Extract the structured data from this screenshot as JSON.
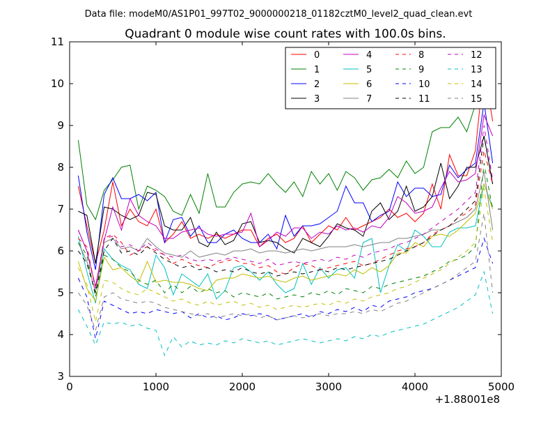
{
  "suptitle": "Data file: modeM0/AS1P01_997T02_9000000218_01182cztM0_level2_quad_clean.evt",
  "chart_data": {
    "type": "line",
    "title": "Quadrant 0 module wise count rates with 100.0s bins.",
    "xlabel": "",
    "ylabel": "",
    "x_offset_label": "+1.88001e8",
    "xlim": [
      0,
      5000
    ],
    "ylim": [
      3,
      11
    ],
    "xticks": [
      0,
      1000,
      2000,
      3000,
      4000,
      5000
    ],
    "yticks": [
      3,
      4,
      5,
      6,
      7,
      8,
      9,
      10,
      11
    ],
    "grid": false,
    "legend": {
      "placement": "top-right",
      "ncol": 4
    },
    "x": [
      100,
      200,
      300,
      400,
      500,
      600,
      700,
      800,
      900,
      1000,
      1100,
      1200,
      1300,
      1400,
      1500,
      1600,
      1700,
      1800,
      1900,
      2000,
      2100,
      2200,
      2300,
      2400,
      2500,
      2600,
      2700,
      2800,
      2900,
      3000,
      3100,
      3200,
      3300,
      3400,
      3500,
      3600,
      3700,
      3800,
      3900,
      4000,
      4100,
      4200,
      4300,
      4400,
      4500,
      4600,
      4700,
      4800,
      4900
    ],
    "series": [
      {
        "name": "0",
        "color": "#ff0000",
        "dash": "solid",
        "values": [
          7.55,
          6.6,
          5.7,
          6.5,
          7.65,
          6.6,
          7.0,
          6.7,
          6.6,
          7.0,
          6.2,
          6.4,
          6.7,
          6.3,
          6.4,
          6.3,
          6.4,
          6.3,
          6.4,
          6.5,
          6.5,
          6.1,
          6.3,
          6.4,
          6.2,
          6.3,
          6.6,
          6.2,
          6.4,
          6.6,
          6.5,
          6.8,
          6.5,
          6.6,
          6.7,
          6.8,
          7.0,
          6.8,
          6.9,
          6.7,
          6.9,
          7.6,
          7.0,
          8.3,
          7.8,
          7.8,
          8.4,
          10.4,
          9.1
        ]
      },
      {
        "name": "1",
        "color": "#008000",
        "dash": "solid",
        "values": [
          8.65,
          7.1,
          6.75,
          7.45,
          7.7,
          8.0,
          8.05,
          7.0,
          7.55,
          7.45,
          7.3,
          6.95,
          6.85,
          7.35,
          6.9,
          7.85,
          7.05,
          7.05,
          7.4,
          7.6,
          7.65,
          7.6,
          7.85,
          7.6,
          7.4,
          7.65,
          7.3,
          7.9,
          7.6,
          7.85,
          7.45,
          7.9,
          7.75,
          7.45,
          7.7,
          7.75,
          7.95,
          7.75,
          8.15,
          7.85,
          8.0,
          8.85,
          8.95,
          8.95,
          9.2,
          8.85,
          9.5,
          10.6,
          9.7
        ]
      },
      {
        "name": "2",
        "color": "#0000ff",
        "dash": "solid",
        "values": [
          7.8,
          6.45,
          5.55,
          7.35,
          7.75,
          7.25,
          7.25,
          7.35,
          7.2,
          7.4,
          6.2,
          6.75,
          6.8,
          6.35,
          6.6,
          6.2,
          6.2,
          6.4,
          6.5,
          6.3,
          6.2,
          6.2,
          6.4,
          6.05,
          6.85,
          6.35,
          6.6,
          6.6,
          6.65,
          6.8,
          6.95,
          7.55,
          7.15,
          7.15,
          6.7,
          6.85,
          6.95,
          7.65,
          7.3,
          7.5,
          7.5,
          7.3,
          7.35,
          8.05,
          7.75,
          7.95,
          8.1,
          9.55,
          8.1
        ]
      },
      {
        "name": "3",
        "color": "#000000",
        "dash": "solid",
        "values": [
          6.95,
          6.85,
          5.7,
          7.05,
          7.0,
          6.85,
          6.75,
          6.85,
          7.4,
          7.35,
          6.6,
          6.5,
          6.5,
          6.8,
          6.2,
          6.1,
          6.45,
          6.15,
          6.25,
          6.65,
          6.7,
          6.2,
          6.25,
          6.2,
          6.05,
          5.95,
          6.3,
          6.2,
          6.1,
          6.35,
          6.65,
          6.55,
          6.5,
          6.35,
          6.95,
          7.15,
          6.75,
          6.95,
          7.55,
          6.95,
          7.05,
          7.3,
          8.1,
          7.25,
          7.55,
          8.0,
          8.0,
          8.75,
          7.6
        ]
      },
      {
        "name": "4",
        "color": "#bf00bf",
        "dash": "solid",
        "values": [
          6.5,
          6.0,
          5.15,
          6.25,
          7.05,
          6.5,
          7.25,
          6.85,
          6.7,
          6.6,
          6.3,
          6.3,
          6.45,
          6.5,
          6.55,
          6.4,
          6.35,
          6.4,
          6.4,
          6.45,
          6.9,
          6.1,
          6.25,
          6.45,
          6.35,
          6.55,
          6.55,
          6.3,
          6.45,
          6.4,
          6.6,
          6.5,
          6.55,
          6.45,
          6.6,
          6.55,
          6.8,
          7.3,
          7.15,
          6.9,
          6.95,
          7.05,
          7.5,
          7.9,
          7.65,
          7.7,
          7.85,
          9.25,
          8.75
        ]
      },
      {
        "name": "5",
        "color": "#00bfbf",
        "dash": "solid",
        "values": [
          6.35,
          5.5,
          4.75,
          6.05,
          5.8,
          5.65,
          5.55,
          5.2,
          5.1,
          5.9,
          5.6,
          4.95,
          5.45,
          5.3,
          5.15,
          5.45,
          4.85,
          5.05,
          5.6,
          5.65,
          5.5,
          5.3,
          5.5,
          5.2,
          5.0,
          5.1,
          5.7,
          5.2,
          5.6,
          5.35,
          5.55,
          5.6,
          5.35,
          6.2,
          6.3,
          5.0,
          5.65,
          6.15,
          6.0,
          6.5,
          6.35,
          6.1,
          6.1,
          6.45,
          6.55,
          6.55,
          6.6,
          7.6,
          7.05
        ]
      },
      {
        "name": "6",
        "color": "#bfbf00",
        "dash": "solid",
        "values": [
          5.75,
          5.1,
          4.8,
          5.85,
          5.55,
          5.6,
          5.4,
          5.25,
          5.75,
          5.25,
          5.3,
          5.25,
          5.25,
          5.2,
          5.1,
          5.05,
          5.3,
          5.35,
          5.35,
          5.45,
          5.4,
          5.35,
          5.4,
          5.3,
          5.25,
          5.35,
          5.4,
          5.3,
          5.35,
          5.4,
          5.45,
          5.4,
          5.55,
          5.45,
          5.6,
          5.5,
          5.65,
          5.95,
          5.95,
          6.2,
          6.1,
          6.35,
          6.4,
          6.35,
          6.5,
          6.7,
          6.9,
          7.6,
          7.0
        ]
      },
      {
        "name": "7",
        "color": "#808080",
        "dash": "solid",
        "values": [
          6.2,
          5.75,
          5.0,
          6.2,
          6.3,
          6.05,
          6.1,
          6.0,
          6.3,
          6.1,
          5.95,
          5.9,
          5.85,
          6.0,
          5.85,
          5.9,
          5.95,
          5.9,
          6.0,
          6.0,
          6.05,
          5.95,
          6.0,
          6.0,
          5.95,
          6.0,
          6.05,
          6.0,
          6.05,
          6.1,
          6.1,
          6.1,
          6.15,
          6.1,
          6.15,
          6.2,
          6.2,
          6.3,
          6.3,
          6.35,
          6.4,
          6.5,
          6.5,
          6.6,
          6.7,
          6.8,
          7.0,
          7.9,
          6.5
        ]
      },
      {
        "name": "8",
        "color": "#ff0000",
        "dash": "dashed",
        "values": [
          6.3,
          6.1,
          5.1,
          6.3,
          6.4,
          6.2,
          5.9,
          6.0,
          6.1,
          6.0,
          5.9,
          5.7,
          5.8,
          5.7,
          5.65,
          5.6,
          5.7,
          5.75,
          5.8,
          5.7,
          5.7,
          5.6,
          5.65,
          5.5,
          5.45,
          5.6,
          5.7,
          5.65,
          5.55,
          5.6,
          5.65,
          5.7,
          5.75,
          5.65,
          5.7,
          5.8,
          5.9,
          6.0,
          6.05,
          6.1,
          6.2,
          6.4,
          6.5,
          6.6,
          6.8,
          6.9,
          7.1,
          8.4,
          7.6
        ]
      },
      {
        "name": "9",
        "color": "#008000",
        "dash": "dashed",
        "values": [
          6.2,
          5.9,
          4.9,
          5.9,
          5.8,
          5.6,
          5.5,
          5.3,
          5.2,
          5.3,
          5.0,
          5.2,
          5.0,
          5.15,
          5.0,
          5.1,
          5.0,
          5.05,
          4.9,
          5.0,
          4.95,
          4.9,
          5.0,
          4.85,
          4.9,
          4.95,
          4.9,
          5.0,
          4.95,
          5.05,
          4.95,
          5.1,
          5.05,
          5.0,
          5.15,
          5.1,
          5.2,
          5.25,
          5.3,
          5.35,
          5.4,
          5.5,
          5.6,
          5.75,
          5.8,
          5.9,
          6.1,
          8.1,
          7.0
        ]
      },
      {
        "name": "10",
        "color": "#0000ff",
        "dash": "dashed",
        "values": [
          5.35,
          4.9,
          3.9,
          4.8,
          4.7,
          4.6,
          4.5,
          4.55,
          4.5,
          4.6,
          4.55,
          4.5,
          4.55,
          4.4,
          4.5,
          4.4,
          4.45,
          4.35,
          4.4,
          4.5,
          4.45,
          4.5,
          4.45,
          4.35,
          4.4,
          4.45,
          4.5,
          4.4,
          4.55,
          4.5,
          4.6,
          4.55,
          4.65,
          4.55,
          4.7,
          4.65,
          4.8,
          4.85,
          4.9,
          5.0,
          5.05,
          5.1,
          5.2,
          5.3,
          5.4,
          5.5,
          5.6,
          6.3,
          5.7
        ]
      },
      {
        "name": "11",
        "color": "#000000",
        "dash": "dashed",
        "values": [
          6.0,
          5.7,
          5.0,
          6.0,
          6.3,
          5.95,
          6.0,
          5.9,
          6.1,
          5.95,
          5.8,
          5.7,
          5.6,
          5.65,
          5.55,
          5.6,
          5.5,
          5.55,
          5.5,
          5.6,
          5.5,
          5.45,
          5.5,
          5.4,
          5.45,
          5.5,
          5.45,
          5.5,
          5.55,
          5.5,
          5.6,
          5.55,
          5.6,
          5.65,
          5.7,
          5.75,
          5.8,
          5.9,
          6.0,
          6.1,
          6.2,
          6.35,
          6.5,
          6.6,
          6.8,
          7.0,
          7.2,
          8.75,
          7.6
        ]
      },
      {
        "name": "12",
        "color": "#bf00bf",
        "dash": "dashed",
        "values": [
          6.5,
          6.0,
          5.1,
          6.3,
          6.35,
          6.1,
          6.15,
          6.0,
          6.2,
          6.05,
          5.9,
          5.85,
          5.9,
          5.8,
          5.75,
          5.8,
          5.75,
          5.8,
          5.85,
          5.8,
          5.75,
          5.7,
          5.8,
          5.65,
          5.7,
          5.75,
          5.7,
          5.75,
          5.8,
          5.75,
          5.85,
          5.8,
          5.9,
          5.85,
          5.95,
          6.0,
          6.05,
          6.15,
          6.2,
          6.3,
          6.4,
          6.55,
          6.7,
          6.85,
          7.0,
          7.2,
          7.4,
          9.0,
          7.7
        ]
      },
      {
        "name": "13",
        "color": "#00bfbf",
        "dash": "dashed",
        "values": [
          4.6,
          4.2,
          3.75,
          4.3,
          4.25,
          4.3,
          4.2,
          4.25,
          4.15,
          4.1,
          3.5,
          3.95,
          3.7,
          3.85,
          3.75,
          3.8,
          3.75,
          3.85,
          3.8,
          3.9,
          3.85,
          3.8,
          3.85,
          3.75,
          3.8,
          3.85,
          3.9,
          3.85,
          3.8,
          3.85,
          3.9,
          3.85,
          3.95,
          3.9,
          4.0,
          3.95,
          4.05,
          4.1,
          4.15,
          4.2,
          4.25,
          4.35,
          4.45,
          4.55,
          4.65,
          4.8,
          4.95,
          5.5,
          4.5
        ]
      },
      {
        "name": "14",
        "color": "#bfbf00",
        "dash": "dashed",
        "values": [
          5.6,
          5.2,
          4.3,
          5.3,
          5.25,
          5.1,
          5.0,
          4.95,
          5.1,
          5.0,
          4.9,
          4.8,
          4.85,
          4.75,
          4.7,
          4.8,
          4.7,
          4.75,
          4.8,
          4.7,
          4.75,
          4.65,
          4.7,
          4.6,
          4.65,
          4.7,
          4.65,
          4.7,
          4.75,
          4.7,
          4.8,
          4.75,
          4.85,
          4.8,
          4.9,
          4.95,
          5.0,
          5.1,
          5.15,
          5.25,
          5.35,
          5.45,
          5.55,
          5.7,
          5.85,
          6.0,
          6.2,
          7.5,
          6.2
        ]
      },
      {
        "name": "15",
        "color": "#808080",
        "dash": "dashed",
        "values": [
          5.0,
          4.7,
          4.1,
          4.9,
          5.0,
          4.85,
          4.8,
          4.75,
          4.8,
          4.75,
          4.65,
          4.6,
          4.55,
          4.5,
          4.45,
          4.5,
          4.4,
          4.45,
          4.5,
          4.45,
          4.5,
          4.4,
          4.45,
          4.35,
          4.4,
          4.45,
          4.4,
          4.45,
          4.5,
          4.45,
          4.5,
          4.5,
          4.55,
          4.5,
          4.6,
          4.55,
          4.65,
          4.75,
          4.8,
          4.9,
          5.0,
          5.1,
          5.2,
          5.3,
          5.45,
          5.6,
          5.75,
          6.9,
          5.0
        ]
      }
    ]
  }
}
